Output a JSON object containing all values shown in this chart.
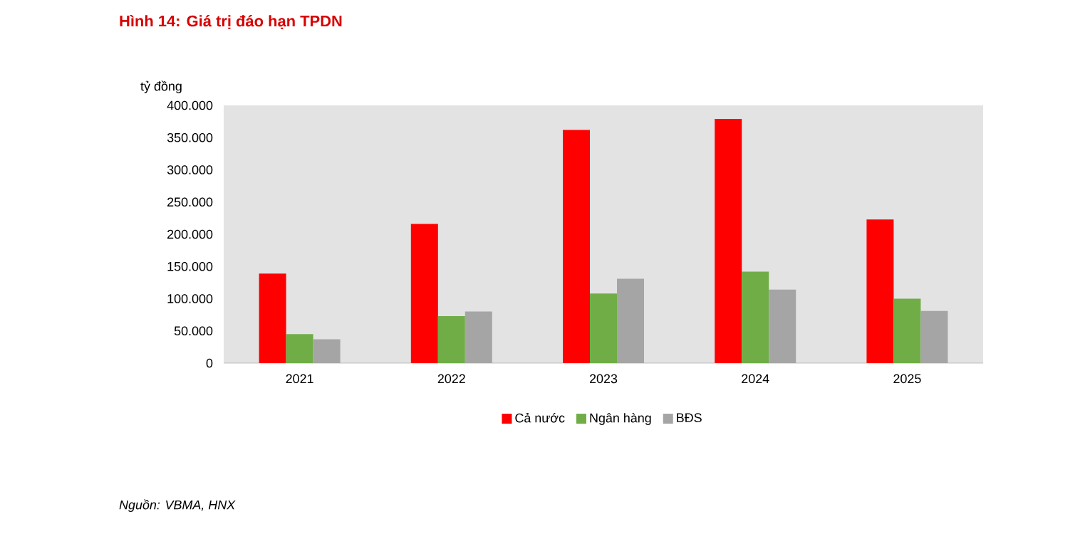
{
  "chart_data": {
    "type": "bar",
    "title": "Hình 14: Giá trị đáo hạn TPDN",
    "ylabel": "tỷ đồng",
    "categories": [
      "2021",
      "2022",
      "2023",
      "2024",
      "2025"
    ],
    "series": [
      {
        "name": "Cả nước",
        "color": "#ff0000",
        "values": [
          139000,
          216000,
          362000,
          379000,
          223000
        ]
      },
      {
        "name": "Ngân hàng",
        "color": "#70ad47",
        "values": [
          45000,
          73000,
          108000,
          142000,
          100000
        ]
      },
      {
        "name": "BĐS",
        "color": "#a5a5a5",
        "values": [
          37000,
          80000,
          131000,
          114000,
          81000
        ]
      }
    ],
    "ylim": [
      0,
      400000
    ],
    "yticks": [
      {
        "value": 0,
        "label": "0"
      },
      {
        "value": 50000,
        "label": "50.000"
      },
      {
        "value": 100000,
        "label": "100.000"
      },
      {
        "value": 150000,
        "label": "150.000"
      },
      {
        "value": 200000,
        "label": "200.000"
      },
      {
        "value": 250000,
        "label": "250.000"
      },
      {
        "value": 300000,
        "label": "300.000"
      },
      {
        "value": 350000,
        "label": "350.000"
      },
      {
        "value": 400000,
        "label": "400.000"
      }
    ],
    "legend": "bottom",
    "annotations": [
      "*Nguồn: VBMA, HNX*"
    ]
  }
}
